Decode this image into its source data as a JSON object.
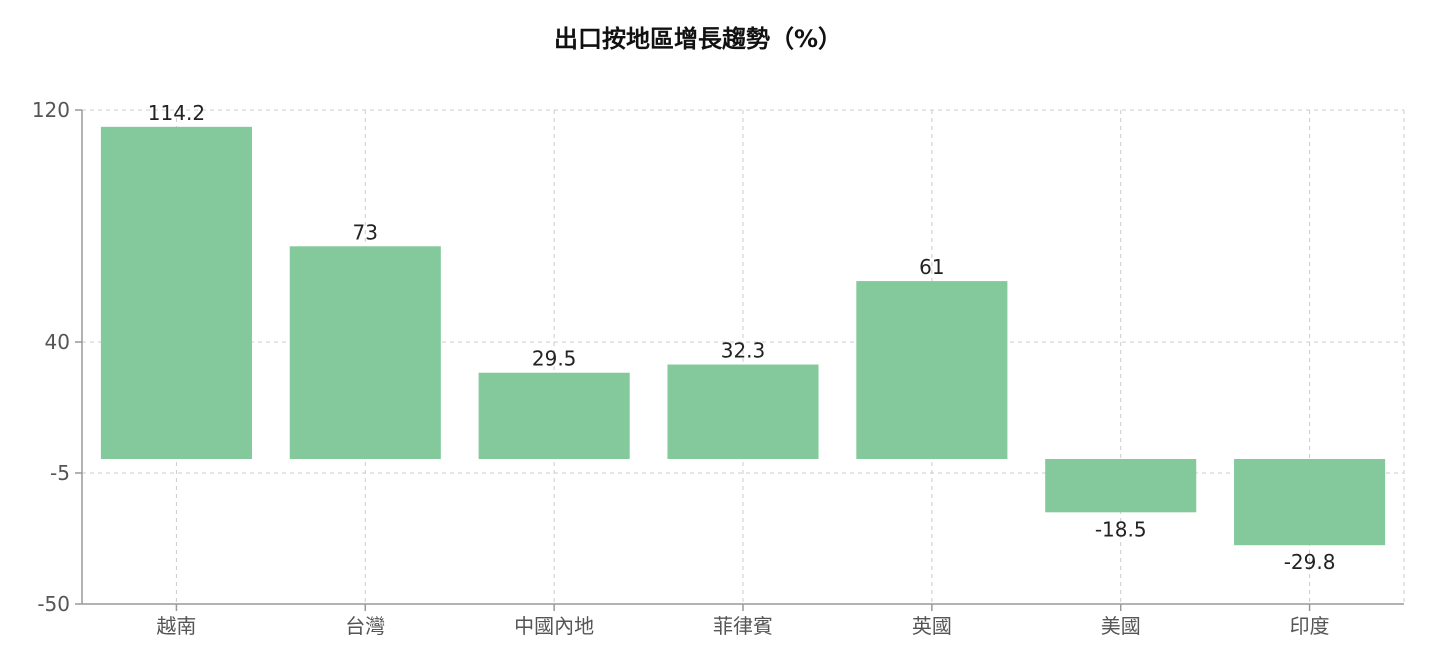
{
  "chart_data": {
    "type": "bar",
    "title": "出口按地區增長趨勢（%）",
    "xlabel": "",
    "ylabel": "",
    "categories": [
      "越南",
      "台灣",
      "中國內地",
      "菲律賓",
      "英國",
      "美國",
      "印度"
    ],
    "values": [
      114.2,
      73,
      29.5,
      32.3,
      61,
      -18.5,
      -29.8
    ],
    "data_labels": [
      "114.2",
      "73",
      "29.5",
      "32.3",
      "61",
      "-18.5",
      "-29.8"
    ],
    "yticks": [
      120,
      40,
      -5,
      -50
    ],
    "ytick_labels": [
      "120",
      "40",
      "-5",
      "-50"
    ],
    "ylim": [
      -50,
      120
    ],
    "grid": true,
    "bar_color": "#84c99b"
  }
}
